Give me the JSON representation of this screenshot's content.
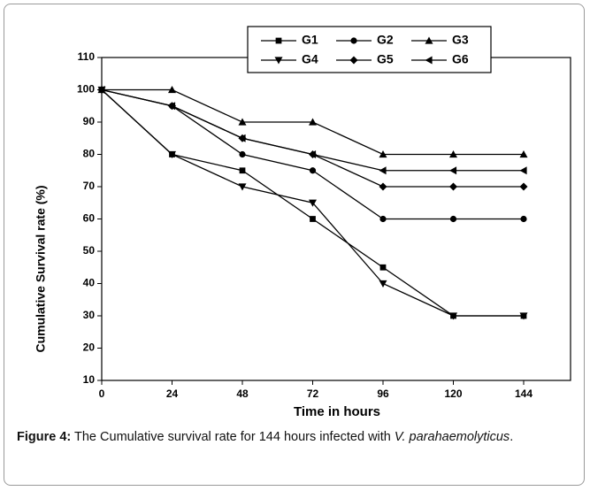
{
  "chart_data": {
    "type": "line",
    "x_label": "Time in hours",
    "y_label": "Cumulative Survival rate (%)",
    "x": [
      0,
      24,
      48,
      72,
      96,
      120,
      144
    ],
    "series": [
      {
        "name": "G1",
        "color": "#000000",
        "marker": "square",
        "values": [
          100,
          80,
          75,
          60,
          45,
          30,
          30
        ]
      },
      {
        "name": "G2",
        "color": "#000000",
        "marker": "circle",
        "values": [
          100,
          95,
          80,
          75,
          60,
          60,
          60
        ]
      },
      {
        "name": "G3",
        "color": "#000000",
        "marker": "triangle-up",
        "values": [
          100,
          100,
          90,
          90,
          80,
          80,
          80
        ]
      },
      {
        "name": "G4",
        "color": "#000000",
        "marker": "triangle-down",
        "values": [
          100,
          80,
          70,
          65,
          40,
          30,
          30
        ]
      },
      {
        "name": "G5",
        "color": "#000000",
        "marker": "diamond",
        "values": [
          100,
          95,
          85,
          80,
          70,
          70,
          70
        ]
      },
      {
        "name": "G6",
        "color": "#000000",
        "marker": "triangle-left",
        "values": [
          100,
          95,
          85,
          80,
          75,
          75,
          75
        ]
      }
    ],
    "xlim": [
      0,
      160
    ],
    "xticks": [
      0,
      24,
      48,
      72,
      96,
      120,
      144
    ],
    "ylim": [
      10,
      110
    ],
    "yticks": [
      10,
      20,
      30,
      40,
      50,
      60,
      70,
      80,
      90,
      100,
      110
    ],
    "grid": false,
    "legend": "top"
  },
  "caption": {
    "label": "Figure 4:",
    "text": "The Cumulative survival rate for 144 hours infected with",
    "italic": "V. parahaemolyticus",
    "end": "."
  }
}
